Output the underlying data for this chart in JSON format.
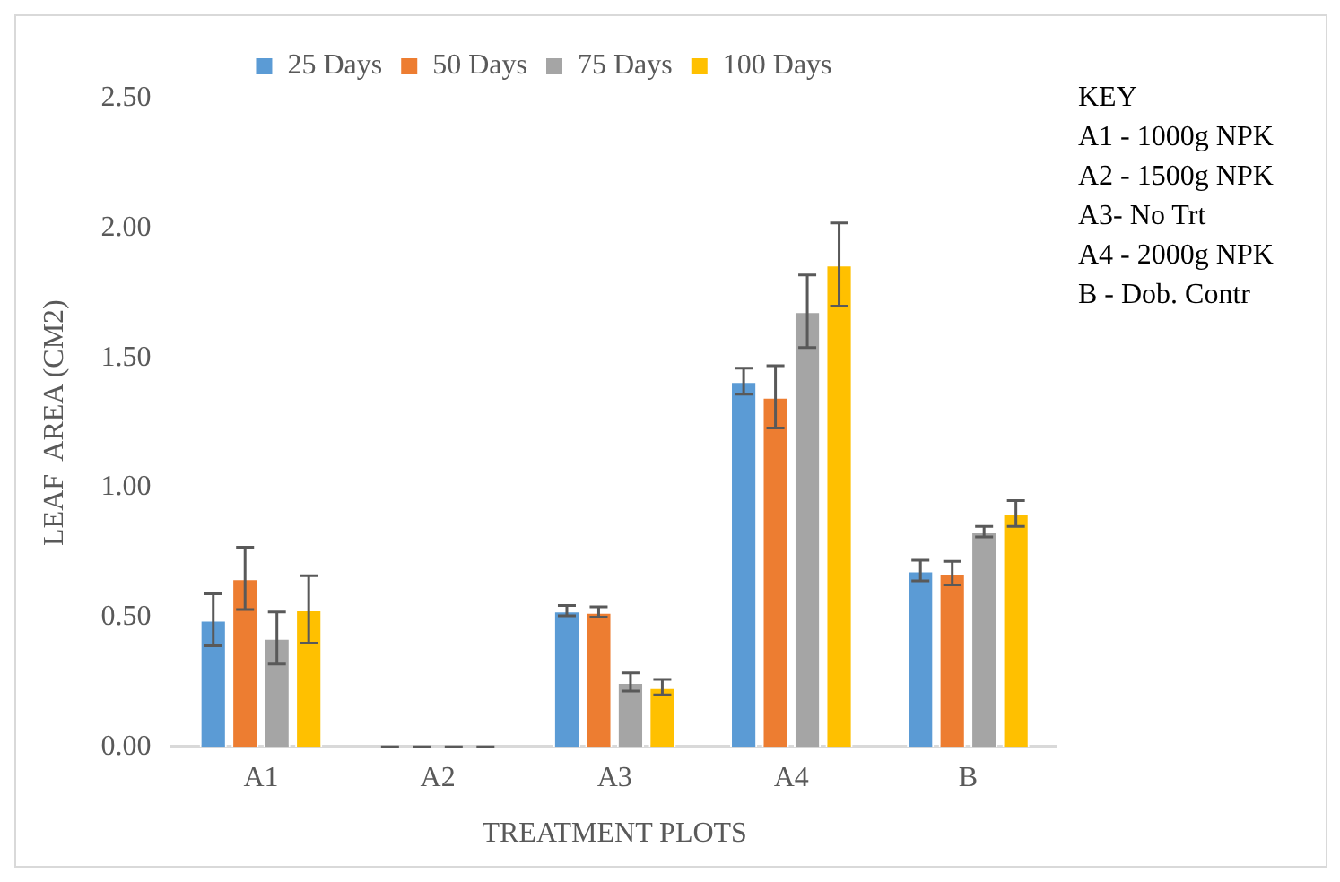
{
  "chart_data": {
    "type": "bar",
    "xlabel": "TREATMENT PLOTS",
    "ylabel": "LEAF  AREA (CM2)",
    "categories": [
      "A1",
      "A2",
      "A3",
      "A4",
      "B"
    ],
    "series": [
      {
        "name": "25 Days",
        "color": "#5b9bd5",
        "values": [
          0.49,
          0,
          0.525,
          1.41,
          0.68
        ],
        "errors": [
          0.1,
          0,
          0.02,
          0.05,
          0.04
        ]
      },
      {
        "name": "50 Days",
        "color": "#ed7d31",
        "values": [
          0.65,
          0,
          0.52,
          1.35,
          0.67
        ],
        "errors": [
          0.12,
          0,
          0.02,
          0.12,
          0.045
        ]
      },
      {
        "name": "75 Days",
        "color": "#a5a5a5",
        "values": [
          0.42,
          0,
          0.25,
          1.68,
          0.83
        ],
        "errors": [
          0.1,
          0,
          0.035,
          0.14,
          0.02
        ]
      },
      {
        "name": "100 Days",
        "color": "#ffc000",
        "values": [
          0.53,
          0,
          0.23,
          1.86,
          0.9
        ],
        "errors": [
          0.13,
          0,
          0.03,
          0.16,
          0.05
        ]
      }
    ],
    "ylim": [
      0,
      2.5
    ],
    "yticks": [
      {
        "value": 0,
        "label": "0.00"
      },
      {
        "value": 0.5,
        "label": "0.50"
      },
      {
        "value": 1,
        "label": "1.00"
      },
      {
        "value": 1.5,
        "label": "1.50"
      },
      {
        "value": 2,
        "label": "2.00"
      },
      {
        "value": 2.5,
        "label": "2.50"
      }
    ],
    "grid": false,
    "legend": "top",
    "annotations": [
      "KEY",
      "A1 - 1000g NPK",
      "A2 - 1500g NPK",
      "A3- No Trt",
      "A4 - 2000g NPK",
      "B - Dob. Contr"
    ]
  }
}
